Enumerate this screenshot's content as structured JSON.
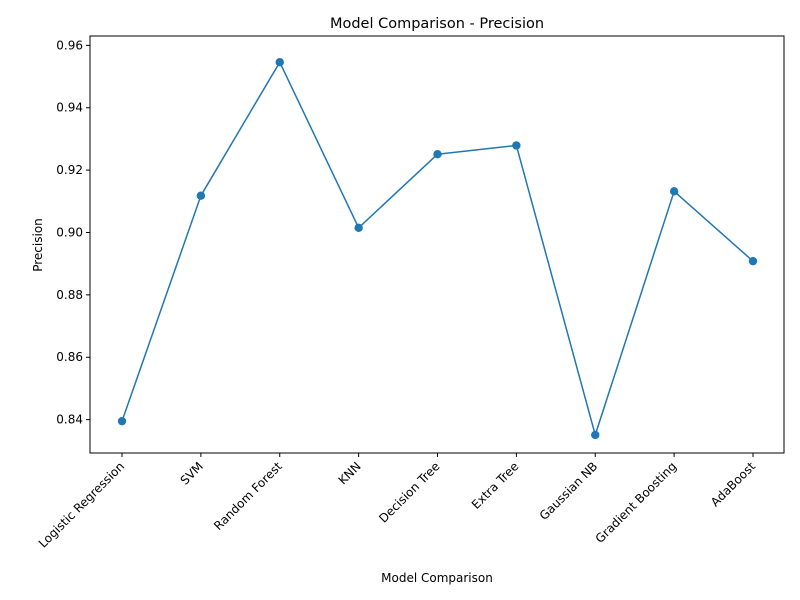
{
  "chart_data": {
    "type": "line",
    "title": "Model Comparison - Precision",
    "xlabel": "Model Comparison",
    "ylabel": "Precision",
    "categories": [
      "Logistic Regression",
      "SVM",
      "Random Forest",
      "KNN",
      "Decision Tree",
      "Extra Tree",
      "Gaussian NB",
      "Gradient Boosting",
      "AdaBoost"
    ],
    "series": [
      {
        "values": [
          0.8395,
          0.9118,
          0.9546,
          0.9015,
          0.9251,
          0.9279,
          0.8351,
          0.9132,
          0.8908
        ],
        "color": "#1f77b4",
        "marker": "circle"
      }
    ],
    "ylim": [
      0.8293,
      0.963
    ],
    "yticks": [
      0.84,
      0.86,
      0.88,
      0.9,
      0.92,
      0.94,
      0.96
    ],
    "ytick_labels": [
      "0.84",
      "0.86",
      "0.88",
      "0.90",
      "0.92",
      "0.94",
      "0.96"
    ],
    "grid": false,
    "legend": "none"
  }
}
